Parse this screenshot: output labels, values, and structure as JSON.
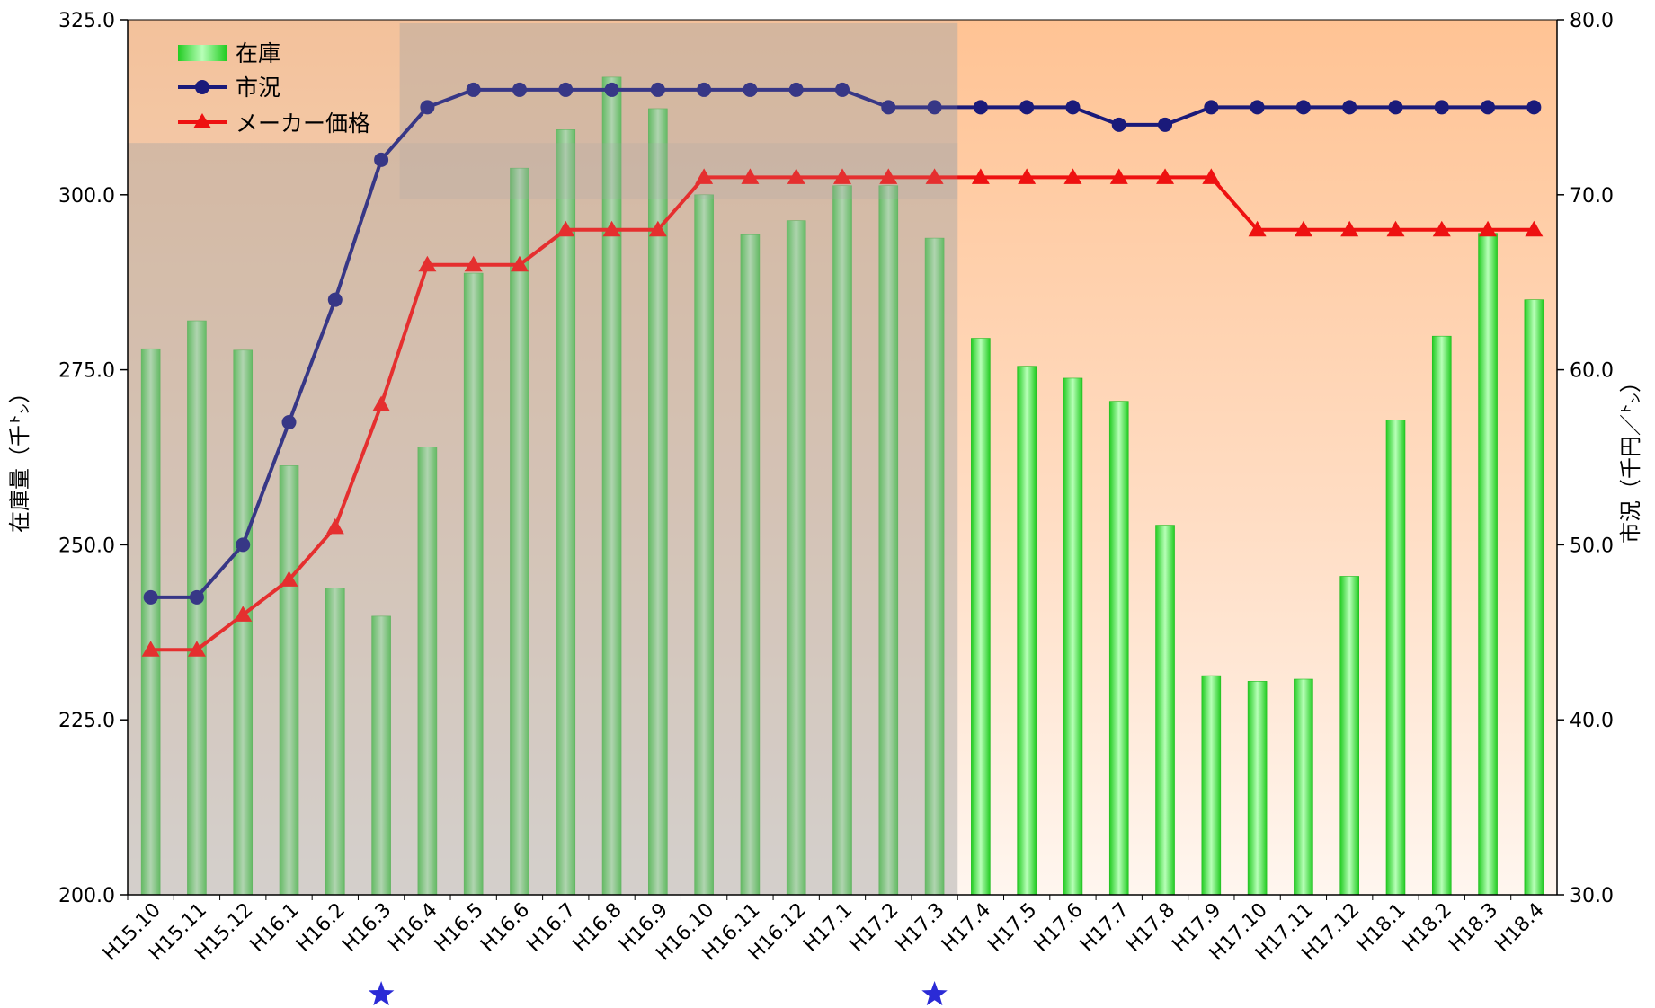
{
  "chart_data": {
    "type": "bar",
    "categories": [
      "H15.10",
      "H15.11",
      "H15.12",
      "H16.1",
      "H16.2",
      "H16.3",
      "H16.4",
      "H16.5",
      "H16.6",
      "H16.7",
      "H16.8",
      "H16.9",
      "H16.10",
      "H16.11",
      "H16.12",
      "H17.1",
      "H17.2",
      "H17.3",
      "H17.4",
      "H17.5",
      "H17.6",
      "H17.7",
      "H17.8",
      "H17.9",
      "H17.10",
      "H17.11",
      "H17.12",
      "H18.1",
      "H18.2",
      "H18.3",
      "H18.4"
    ],
    "series": [
      {
        "name": "在庫",
        "type": "bar",
        "axis": "left",
        "color": "#33dd33",
        "values": [
          278.0,
          282.0,
          277.8,
          261.3,
          243.8,
          239.8,
          264.0,
          288.8,
          303.8,
          309.3,
          316.8,
          312.3,
          300.0,
          294.3,
          296.3,
          301.3,
          301.3,
          293.8,
          279.5,
          275.5,
          273.8,
          270.5,
          252.8,
          231.3,
          230.5,
          230.8,
          245.5,
          267.8,
          279.8,
          294.5,
          285.0
        ]
      },
      {
        "name": "市況",
        "type": "line",
        "axis": "right",
        "color": "#1a1a7a",
        "marker": "circle",
        "values": [
          47,
          47,
          50,
          57,
          64,
          72,
          75,
          76,
          76,
          76,
          76,
          76,
          76,
          76,
          76,
          76,
          75,
          75,
          75,
          75,
          75,
          74,
          74,
          75,
          75,
          75,
          75,
          75,
          75,
          75,
          75
        ]
      },
      {
        "name": "メーカー価格",
        "type": "line",
        "axis": "right",
        "color": "#ee1111",
        "marker": "triangle",
        "values": [
          44,
          44,
          46,
          48,
          51,
          58,
          66,
          66,
          66,
          68,
          68,
          68,
          71,
          71,
          71,
          71,
          71,
          71,
          71,
          71,
          71,
          71,
          71,
          71,
          68,
          68,
          68,
          68,
          68,
          68,
          68
        ]
      }
    ],
    "ylabel_left": "在庫量（千㌧）",
    "ylabel_right": "市況（千円／㌧）",
    "ylim_left": [
      200,
      325
    ],
    "ylim_right": [
      30,
      80
    ],
    "yticks_left": [
      "200.0",
      "225.0",
      "250.0",
      "275.0",
      "300.0",
      "325.0"
    ],
    "yticks_right": [
      "30.0",
      "40.0",
      "50.0",
      "60.0",
      "70.0",
      "80.0"
    ],
    "grid": false,
    "legend_position": "top-left",
    "star_markers": [
      "H16.3",
      "H17.3"
    ]
  }
}
